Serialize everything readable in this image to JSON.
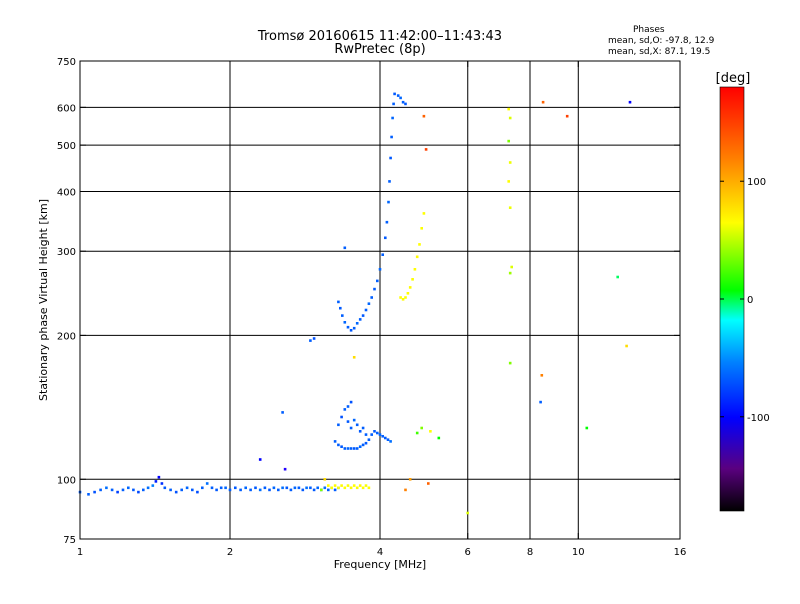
{
  "chart_data": {
    "type": "scatter",
    "title": "Tromsø 20160615 11:42:00–11:43:43",
    "subtitle": "RwPretec (8p)",
    "xlabel": "Frequency [MHz]",
    "ylabel": "Stationary phase Virtual Height [km]",
    "xscale": "log2",
    "yscale": "log",
    "xlim": [
      1,
      16
    ],
    "ylim": [
      75,
      750
    ],
    "x_ticks": [
      1,
      2,
      4,
      6,
      8,
      10,
      16
    ],
    "x_tick_labels": [
      "1",
      "2",
      "4",
      "6",
      "8",
      "10",
      "16"
    ],
    "y_ticks": [
      75,
      100,
      200,
      300,
      400,
      500,
      600,
      750
    ],
    "y_tick_labels": [
      "75",
      "100",
      "200",
      "300",
      "400",
      "500",
      "600",
      "750"
    ],
    "x_gridlines": [
      2,
      4,
      6,
      8,
      10
    ],
    "y_gridlines": [
      100,
      200,
      300,
      400,
      500,
      600
    ],
    "grid": true,
    "phases_box": {
      "title": "Phases",
      "line1": "mean, sd,O: -97.8, 12.9",
      "line2": "mean, sd,X:  87.1, 19.5"
    },
    "colorbar": {
      "label": "[deg]",
      "range": [
        -180,
        180
      ],
      "ticks": [
        100,
        0,
        -100
      ],
      "tick_labels": [
        "100",
        "0",
        "-100"
      ]
    },
    "series": [
      {
        "points": [
          [
            1.0,
            94,
            -110
          ],
          [
            1.04,
            93,
            -110
          ],
          [
            1.07,
            94,
            -115
          ],
          [
            1.1,
            95,
            -110
          ],
          [
            1.13,
            96,
            -105
          ],
          [
            1.16,
            95,
            -110
          ],
          [
            1.19,
            94,
            -120
          ],
          [
            1.22,
            95,
            -110
          ],
          [
            1.25,
            96,
            -108
          ],
          [
            1.28,
            95,
            -112
          ],
          [
            1.31,
            94,
            -118
          ],
          [
            1.34,
            95,
            -110
          ],
          [
            1.37,
            96,
            -105
          ],
          [
            1.4,
            97,
            -100
          ],
          [
            1.42,
            99,
            -130
          ],
          [
            1.44,
            101,
            -140
          ],
          [
            1.46,
            98,
            -125
          ],
          [
            1.48,
            96,
            -112
          ],
          [
            1.52,
            95,
            -110
          ],
          [
            1.56,
            94,
            -115
          ],
          [
            1.6,
            95,
            -110
          ],
          [
            1.64,
            96,
            -108
          ],
          [
            1.68,
            95,
            -112
          ],
          [
            1.72,
            94,
            -116
          ],
          [
            1.76,
            96,
            -110
          ],
          [
            1.8,
            98,
            -105
          ],
          [
            1.84,
            96,
            -110
          ],
          [
            1.88,
            95,
            -112
          ],
          [
            1.92,
            96,
            -110
          ],
          [
            1.96,
            96,
            -108
          ],
          [
            2.0,
            95,
            -110
          ],
          [
            2.05,
            96,
            -112
          ],
          [
            2.1,
            95,
            -110
          ],
          [
            2.15,
            96,
            -108
          ],
          [
            2.2,
            95,
            -110
          ],
          [
            2.25,
            96,
            -112
          ],
          [
            2.3,
            95,
            -105
          ],
          [
            2.35,
            96,
            -110
          ],
          [
            2.4,
            95,
            -112
          ],
          [
            2.45,
            96,
            -108
          ],
          [
            2.5,
            95,
            -110
          ],
          [
            2.55,
            96,
            -105
          ],
          [
            2.6,
            96,
            -112
          ],
          [
            2.65,
            95,
            -110
          ],
          [
            2.7,
            96,
            -108
          ],
          [
            2.75,
            96,
            -110
          ],
          [
            2.8,
            95,
            -112
          ],
          [
            2.85,
            96,
            -105
          ],
          [
            2.9,
            96,
            -110
          ],
          [
            2.95,
            95,
            -112
          ],
          [
            3.0,
            96,
            -108
          ],
          [
            3.05,
            95,
            -110
          ],
          [
            3.1,
            96,
            -105
          ],
          [
            3.15,
            95,
            -110
          ],
          [
            3.2,
            96,
            -112
          ],
          [
            3.25,
            95,
            -110
          ],
          [
            3.3,
            96,
            -108
          ],
          [
            3.15,
            97,
            100
          ],
          [
            3.2,
            96,
            98
          ],
          [
            3.25,
            97,
            102
          ],
          [
            3.3,
            96,
            99
          ],
          [
            3.35,
            97,
            101
          ],
          [
            3.4,
            96,
            100
          ],
          [
            3.45,
            97,
            98
          ],
          [
            3.5,
            96,
            102
          ],
          [
            3.55,
            97,
            100
          ],
          [
            3.6,
            96,
            99
          ],
          [
            3.65,
            97,
            101
          ],
          [
            3.7,
            96,
            100
          ],
          [
            3.75,
            97,
            98
          ],
          [
            3.8,
            96,
            100
          ],
          [
            2.3,
            110,
            -140
          ],
          [
            2.58,
            105,
            -150
          ],
          [
            2.55,
            138,
            -110
          ],
          [
            2.9,
            195,
            -110
          ],
          [
            2.95,
            197,
            -115
          ],
          [
            3.05,
            95,
            60
          ],
          [
            3.1,
            100,
            110
          ],
          [
            3.25,
            120,
            -110
          ],
          [
            3.4,
            305,
            -110
          ],
          [
            3.55,
            180,
            110
          ],
          [
            3.3,
            118,
            -110
          ],
          [
            3.35,
            117,
            -112
          ],
          [
            3.4,
            116,
            -110
          ],
          [
            3.45,
            116,
            -108
          ],
          [
            3.5,
            116,
            -110
          ],
          [
            3.55,
            116,
            -112
          ],
          [
            3.6,
            116,
            -110
          ],
          [
            3.65,
            117,
            -108
          ],
          [
            3.7,
            118,
            -110
          ],
          [
            3.75,
            119,
            -112
          ],
          [
            3.8,
            121,
            -110
          ],
          [
            3.85,
            124,
            -110
          ],
          [
            3.9,
            126,
            -112
          ],
          [
            3.95,
            125,
            -110
          ],
          [
            4.0,
            124,
            -108
          ],
          [
            4.05,
            123,
            -110
          ],
          [
            4.1,
            122,
            -112
          ],
          [
            4.15,
            121,
            -110
          ],
          [
            4.2,
            120,
            -105
          ],
          [
            3.3,
            130,
            -110
          ],
          [
            3.35,
            135,
            -115
          ],
          [
            3.4,
            140,
            -110
          ],
          [
            3.45,
            132,
            -112
          ],
          [
            3.5,
            128,
            -110
          ],
          [
            3.55,
            133,
            -108
          ],
          [
            3.6,
            130,
            -110
          ],
          [
            3.65,
            126,
            -112
          ],
          [
            3.7,
            128,
            -110
          ],
          [
            3.75,
            124,
            -110
          ],
          [
            3.5,
            145,
            -115
          ],
          [
            3.45,
            142,
            -110
          ],
          [
            3.3,
            235,
            -110
          ],
          [
            3.33,
            228,
            -112
          ],
          [
            3.36,
            220,
            -110
          ],
          [
            3.4,
            213,
            -108
          ],
          [
            3.45,
            208,
            -110
          ],
          [
            3.5,
            205,
            -112
          ],
          [
            3.55,
            207,
            -110
          ],
          [
            3.6,
            212,
            -108
          ],
          [
            3.65,
            216,
            -110
          ],
          [
            3.7,
            220,
            -112
          ],
          [
            3.75,
            226,
            -110
          ],
          [
            3.8,
            233,
            -108
          ],
          [
            3.85,
            240,
            -110
          ],
          [
            3.9,
            250,
            -112
          ],
          [
            3.95,
            260,
            -110
          ],
          [
            4.0,
            275,
            -108
          ],
          [
            4.05,
            295,
            -110
          ],
          [
            4.1,
            320,
            -112
          ],
          [
            4.13,
            345,
            -110
          ],
          [
            4.16,
            380,
            -108
          ],
          [
            4.18,
            420,
            -110
          ],
          [
            4.2,
            470,
            -112
          ],
          [
            4.22,
            520,
            -110
          ],
          [
            4.24,
            570,
            -108
          ],
          [
            4.26,
            610,
            -110
          ],
          [
            4.28,
            640,
            -112
          ],
          [
            4.35,
            635,
            -110
          ],
          [
            4.4,
            628,
            -108
          ],
          [
            4.45,
            615,
            -110
          ],
          [
            4.5,
            610,
            -112
          ],
          [
            4.4,
            240,
            100
          ],
          [
            4.45,
            238,
            102
          ],
          [
            4.5,
            240,
            98
          ],
          [
            4.55,
            245,
            100
          ],
          [
            4.6,
            252,
            102
          ],
          [
            4.65,
            262,
            98
          ],
          [
            4.7,
            275,
            100
          ],
          [
            4.75,
            292,
            102
          ],
          [
            4.8,
            310,
            100
          ],
          [
            4.85,
            335,
            98
          ],
          [
            4.9,
            360,
            100
          ],
          [
            4.9,
            575,
            150
          ],
          [
            4.95,
            490,
            160
          ],
          [
            4.5,
            95,
            140
          ],
          [
            4.6,
            100,
            130
          ],
          [
            4.75,
            125,
            40
          ],
          [
            4.85,
            128,
            60
          ],
          [
            5.05,
            126,
            100
          ],
          [
            5.25,
            122,
            20
          ],
          [
            5.0,
            98,
            150
          ],
          [
            6.0,
            85,
            90
          ],
          [
            7.3,
            175,
            60
          ],
          [
            7.3,
            270,
            70
          ],
          [
            7.35,
            278,
            90
          ],
          [
            7.3,
            370,
            95
          ],
          [
            7.25,
            420,
            100
          ],
          [
            7.3,
            460,
            95
          ],
          [
            7.25,
            510,
            60
          ],
          [
            7.3,
            570,
            90
          ],
          [
            7.25,
            595,
            100
          ],
          [
            8.5,
            615,
            150
          ],
          [
            8.45,
            165,
            140
          ],
          [
            8.4,
            145,
            -110
          ],
          [
            9.5,
            575,
            160
          ],
          [
            10.4,
            128,
            20
          ],
          [
            12.0,
            265,
            -10
          ],
          [
            12.5,
            190,
            110
          ],
          [
            12.7,
            615,
            -140
          ]
        ]
      }
    ]
  }
}
